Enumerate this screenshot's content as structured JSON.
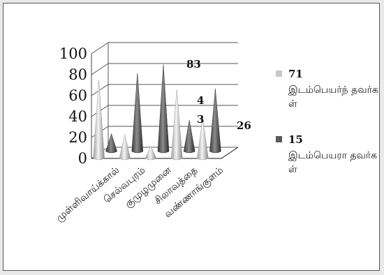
{
  "chart_data": {
    "type": "bar",
    "style": "3d-cone",
    "categories": [
      "முள்ளிவாய்க்கால்",
      "செல்வபுரம்",
      "குமுழமுனை",
      "சிலாவத்தை",
      "வண்ணாங்குளம்"
    ],
    "series": [
      {
        "name": "இடம்பெயர்ந் தவர்கள்",
        "values": [
          75,
          23,
          12,
          66,
          39
        ],
        "color": "#c9c9c9"
      },
      {
        "name": "இடம்பெயரா தவர்கள்",
        "values": [
          17,
          75,
          83,
          30,
          60
        ],
        "color": "#6a6a6a"
      }
    ],
    "legend_values": [
      "71",
      "15"
    ],
    "data_labels": [
      "83",
      "4",
      "3",
      "26"
    ],
    "yticks": [
      "0",
      "20",
      "40",
      "60",
      "80",
      "100"
    ],
    "ylim": [
      0,
      100
    ],
    "grid": true,
    "legend_position": "right"
  }
}
